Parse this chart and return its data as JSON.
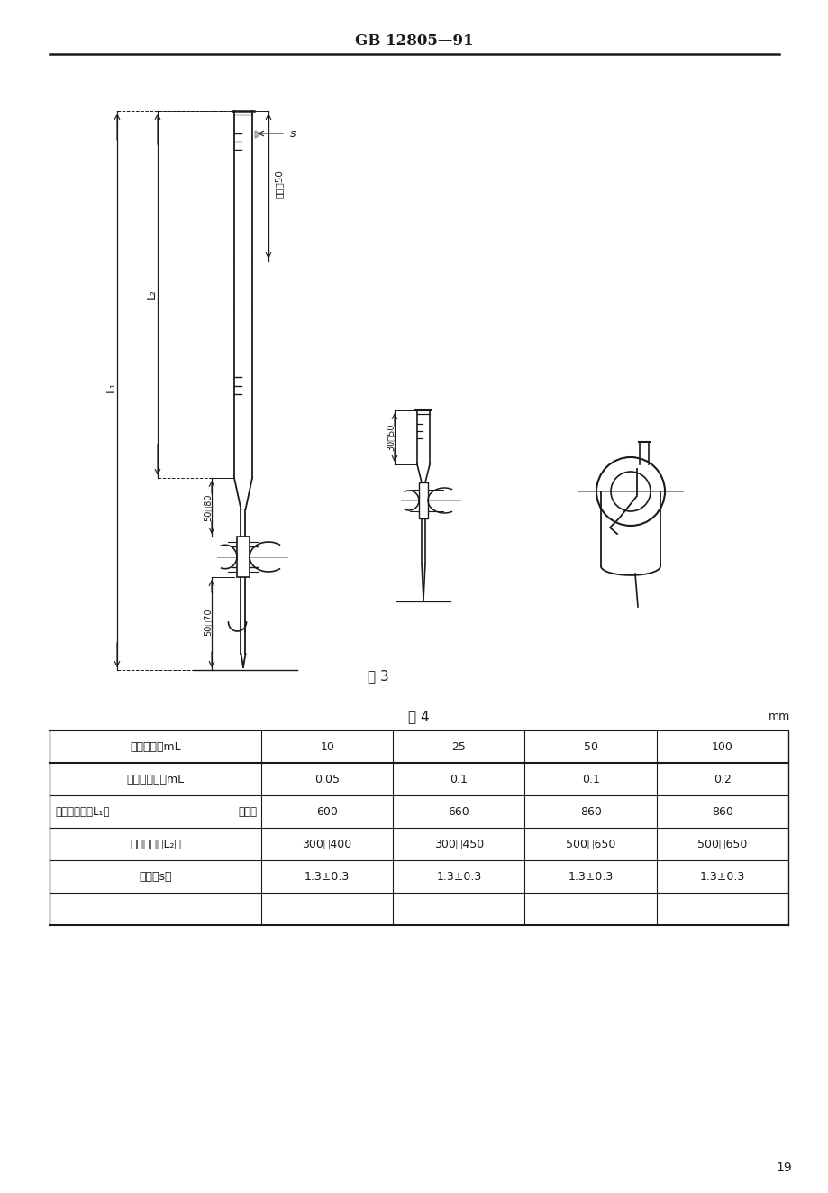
{
  "page_title": "GB 12805—91",
  "fig_caption": "图 3",
  "table_title": "表 4",
  "table_unit": "mm",
  "table_headers": [
    "标称容量，mL",
    "10",
    "25",
    "50",
    "100"
  ],
  "table_rows": [
    [
      "最小分度值，mL",
      "0.05",
      "0.1",
      "0.1",
      "0.2"
    ],
    [
      "滴定管全长（L₁）",
      "不大于",
      "600",
      "660",
      "860",
      "860"
    ],
    [
      "分度表长（L₂）",
      "300～400",
      "300～450",
      "500～650",
      "500～650"
    ],
    [
      "壁厂（s）",
      "1.3±0.3",
      "1.3±0.3",
      "1.3±0.3",
      "1.3±0.3"
    ]
  ],
  "page_number": "19",
  "background_color": "#ffffff",
  "text_color": "#1a1a1a",
  "line_color": "#1a1a1a",
  "dim_label_50_80": "50～80",
  "dim_label_50_70": "50～70",
  "dim_label_30_50": "30～50",
  "dim_label_busmall50": "不小于50",
  "s_label": "s"
}
